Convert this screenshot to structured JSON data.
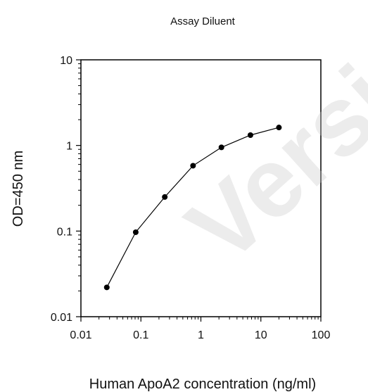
{
  "chart_data": {
    "type": "line",
    "title": "Assay Diluent",
    "xlabel": "Human ApoA2 concentration (ng/ml)",
    "ylabel": "OD=450 nm",
    "xscale": "log",
    "yscale": "log",
    "xlim": [
      0.01,
      100
    ],
    "ylim": [
      0.01,
      10
    ],
    "x_ticks": [
      "0.01",
      "0.1",
      "1",
      "10",
      "100"
    ],
    "y_ticks": [
      "0.01",
      "0.1",
      "1",
      "10"
    ],
    "grid": false,
    "legend": "none",
    "series": [
      {
        "x": [
          0.027,
          0.082,
          0.25,
          0.74,
          2.2,
          6.7,
          20
        ],
        "y": [
          0.022,
          0.097,
          0.25,
          0.58,
          0.95,
          1.32,
          1.62
        ]
      }
    ],
    "marker_color": "#000000",
    "line_color": "#000000"
  },
  "watermark": "Version"
}
